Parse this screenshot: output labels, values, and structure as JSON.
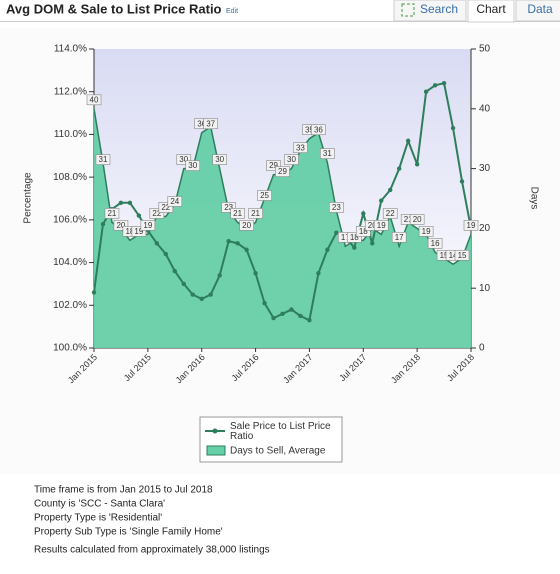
{
  "header": {
    "title": "Avg DOM & Sale to List Price Ratio",
    "edit": "Edit"
  },
  "tabs": [
    "Search",
    "Chart",
    "Data"
  ],
  "chart_data": {
    "type": "line-area",
    "y_label": "Percentage",
    "y2_label": "Days",
    "categories": [
      "Jan 2015",
      null,
      null,
      null,
      null,
      null,
      "Jul 2015",
      null,
      null,
      null,
      null,
      null,
      "Jan 2016",
      null,
      null,
      null,
      null,
      null,
      "Jul 2016",
      null,
      null,
      null,
      null,
      null,
      "Jan 2017",
      null,
      null,
      null,
      null,
      null,
      "Jul 2017",
      null,
      null,
      null,
      null,
      null,
      "Jan 2018",
      null,
      null,
      null,
      null,
      null,
      "Jul 2018"
    ],
    "ylim": [
      100,
      114
    ],
    "yticks": [
      {
        "value": 100,
        "label": "100.0%"
      },
      {
        "value": 102,
        "label": "102.0%"
      },
      {
        "value": 104,
        "label": "104.0%"
      },
      {
        "value": 106,
        "label": "106.0%"
      },
      {
        "value": 108,
        "label": "108.0%"
      },
      {
        "value": 110,
        "label": "110.0%"
      },
      {
        "value": 112,
        "label": "112.0%"
      },
      {
        "value": 114,
        "label": "114.0%"
      }
    ],
    "y2lim": [
      0,
      50
    ],
    "y2ticks": [
      0,
      10,
      20,
      30,
      40,
      50
    ],
    "series": [
      {
        "name": "Sale Price to List Price Ratio",
        "color": "#2e7d5b",
        "values": [
          102.6,
          105.8,
          106.5,
          106.8,
          106.8,
          106.2,
          105.5,
          104.9,
          104.4,
          103.6,
          103.0,
          102.5,
          102.3,
          102.5,
          103.4,
          105.0,
          104.9,
          104.6,
          103.5,
          102.1,
          101.4,
          101.6,
          101.8,
          101.5,
          101.3,
          103.5,
          104.6,
          105.4,
          105.2,
          104.7,
          106.3,
          104.9,
          106.9,
          107.4,
          108.4,
          109.7,
          108.6,
          112.0,
          112.3,
          112.4,
          110.3,
          107.8,
          105.6
        ]
      },
      {
        "name": "Days to Sell, Average",
        "color": "#66cfa8",
        "axis": "y2",
        "values": [
          40,
          31,
          21,
          20,
          18,
          19,
          19,
          22,
          22,
          24,
          30,
          30,
          36,
          37,
          30,
          23,
          21,
          20,
          21,
          25,
          29,
          29,
          30,
          33,
          35,
          36,
          31,
          23,
          17,
          18,
          18,
          20,
          19,
          22,
          17,
          21,
          20,
          19,
          16,
          15,
          14,
          15,
          19
        ]
      }
    ]
  },
  "footer": [
    "Time frame is from Jan 2015 to Jul 2018",
    "County is 'SCC - Santa Clara'",
    "Property Type is 'Residential'",
    "Property Sub Type is 'Single Family Home'",
    "Results calculated from approximately 38,000 listings"
  ]
}
